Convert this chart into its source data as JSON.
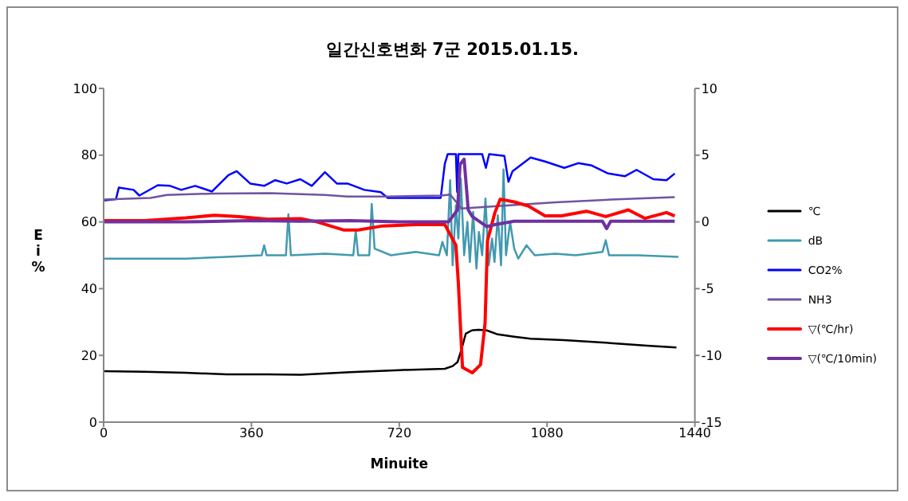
{
  "chart_data": {
    "type": "line",
    "title": "일간신호변화 7군 2015.01.15.",
    "xlabel": "Minuite",
    "ylabel": "Ei%",
    "xlim": [
      0,
      1440
    ],
    "xticks": [
      0,
      360,
      720,
      1080,
      1440
    ],
    "ylim": [
      0,
      100
    ],
    "yticks": [
      0,
      20,
      40,
      60,
      80,
      100
    ],
    "y2lim": [
      -15,
      10
    ],
    "y2ticks": [
      -15,
      -10,
      -5,
      0,
      5,
      10
    ],
    "grid": false,
    "legend": "right",
    "marker": "none",
    "line_style": "solid",
    "series": [
      {
        "name": "℃",
        "color": "#000000",
        "x": [
          0,
          100,
          200,
          300,
          400,
          480,
          600,
          720,
          831,
          850,
          862,
          872,
          882,
          897,
          913,
          933,
          960,
          1000,
          1040,
          1121,
          1223,
          1324,
          1395
        ],
        "values": [
          15.3,
          15.1,
          14.8,
          14.3,
          14.3,
          14.2,
          15,
          15.6,
          16,
          16.8,
          18,
          22,
          26.5,
          27.5,
          27.7,
          27.5,
          26.3,
          25.6,
          25,
          24.6,
          23.8,
          22.9,
          22.4
        ]
      },
      {
        "name": "dB",
        "color": "#4199b0",
        "x": [
          0,
          100,
          200,
          300,
          385,
          391,
          397,
          444,
          450,
          456,
          540,
          608,
          614,
          620,
          647,
          653,
          660,
          700,
          760,
          817,
          825,
          836,
          844,
          850,
          858,
          864,
          870,
          878,
          886,
          892,
          900,
          908,
          914,
          922,
          930,
          938,
          946,
          952,
          960,
          968,
          974,
          980,
          990,
          1000,
          1010,
          1030,
          1050,
          1100,
          1150,
          1215,
          1223,
          1231,
          1300,
          1400
        ],
        "values": [
          49,
          49,
          49,
          49.5,
          50,
          53,
          50,
          50,
          62.3,
          50,
          50.5,
          50,
          57.4,
          50,
          50,
          65.4,
          52,
          50,
          51,
          50,
          54,
          50,
          72.5,
          47,
          65,
          55,
          73,
          50,
          60,
          48,
          63,
          46,
          57,
          50,
          67,
          47,
          55,
          48,
          62,
          47,
          75.7,
          50,
          60,
          52,
          49,
          53,
          50,
          50.5,
          50,
          51,
          54.5,
          50,
          50,
          49.5
        ]
      },
      {
        "name": "CO2%",
        "color": "#0000ff",
        "x": [
          0,
          30,
          37,
          73,
          87,
          132,
          162,
          189,
          223,
          264,
          304,
          324,
          357,
          391,
          418,
          446,
          479,
          507,
          539,
          568,
          594,
          635,
          675,
          692,
          763,
          821,
          831,
          838,
          858,
          861,
          864,
          922,
          931,
          939,
          976,
          986,
          996,
          1040,
          1075,
          1122,
          1156,
          1189,
          1229,
          1270,
          1298,
          1339,
          1371,
          1391
        ],
        "values": [
          66.4,
          66.8,
          70.3,
          69.6,
          67.9,
          71,
          70.8,
          69.6,
          70.8,
          69.1,
          74,
          75.2,
          71.5,
          70.8,
          72.5,
          71.5,
          72.8,
          70.8,
          74.9,
          71.5,
          71.5,
          69.6,
          68.9,
          67.2,
          67.2,
          67.2,
          77.4,
          80.3,
          80.3,
          69,
          80.3,
          80.3,
          76.2,
          80.3,
          79.8,
          72,
          75.2,
          79.3,
          78.1,
          76.2,
          77.6,
          76.9,
          74.5,
          73.7,
          75.6,
          72.8,
          72.5,
          74.5
        ]
      },
      {
        "name": "NH3",
        "color": "#7054a0",
        "x": [
          0,
          114,
          154,
          270,
          406,
          539,
          594,
          690,
          823,
          844,
          872,
          953,
          1101,
          1237,
          1391
        ],
        "values": [
          66.7,
          67.2,
          68.1,
          68.5,
          68.6,
          68.1,
          67.6,
          67.6,
          67.9,
          68.2,
          64,
          64.7,
          65.9,
          66.7,
          67.4
        ]
      },
      {
        "name": "▽(℃/hr)",
        "color": "#ff0000",
        "axis": "y2",
        "x": [
          0,
          100,
          200,
          270,
          330,
          400,
          480,
          520,
          584,
          620,
          680,
          760,
          831,
          858,
          864,
          874,
          898,
          918,
          929,
          933,
          935,
          953,
          966,
          1000,
          1034,
          1075,
          1115,
          1176,
          1223,
          1278,
          1318,
          1371,
          1391
        ],
        "values": [
          0.1,
          0.1,
          0.3,
          0.5,
          0.4,
          0.2,
          0.25,
          0,
          -0.6,
          -0.6,
          -0.3,
          -0.2,
          -0.2,
          -1.75,
          -4.6,
          -10.9,
          -11.3,
          -10.7,
          -7.6,
          -3.4,
          -1.4,
          0.7,
          1.7,
          1.5,
          1.2,
          0.45,
          0.45,
          0.8,
          0.4,
          0.9,
          0.27,
          0.7,
          0.45
        ]
      },
      {
        "name": "▽(℃/10min)",
        "color": "#7030a0",
        "axis": "y2",
        "x": [
          0,
          200,
          360,
          480,
          600,
          720,
          840,
          862,
          868,
          878,
          888,
          898,
          933,
          953,
          1000,
          1100,
          1215,
          1225,
          1235,
          1300,
          1391
        ],
        "values": [
          0,
          0,
          0.1,
          0.05,
          0.1,
          0,
          0,
          0.9,
          4.3,
          4.7,
          0.9,
          0.4,
          -0.35,
          -0.2,
          0.05,
          0.05,
          0.05,
          -0.5,
          0.05,
          0.05,
          0.05
        ]
      }
    ]
  }
}
